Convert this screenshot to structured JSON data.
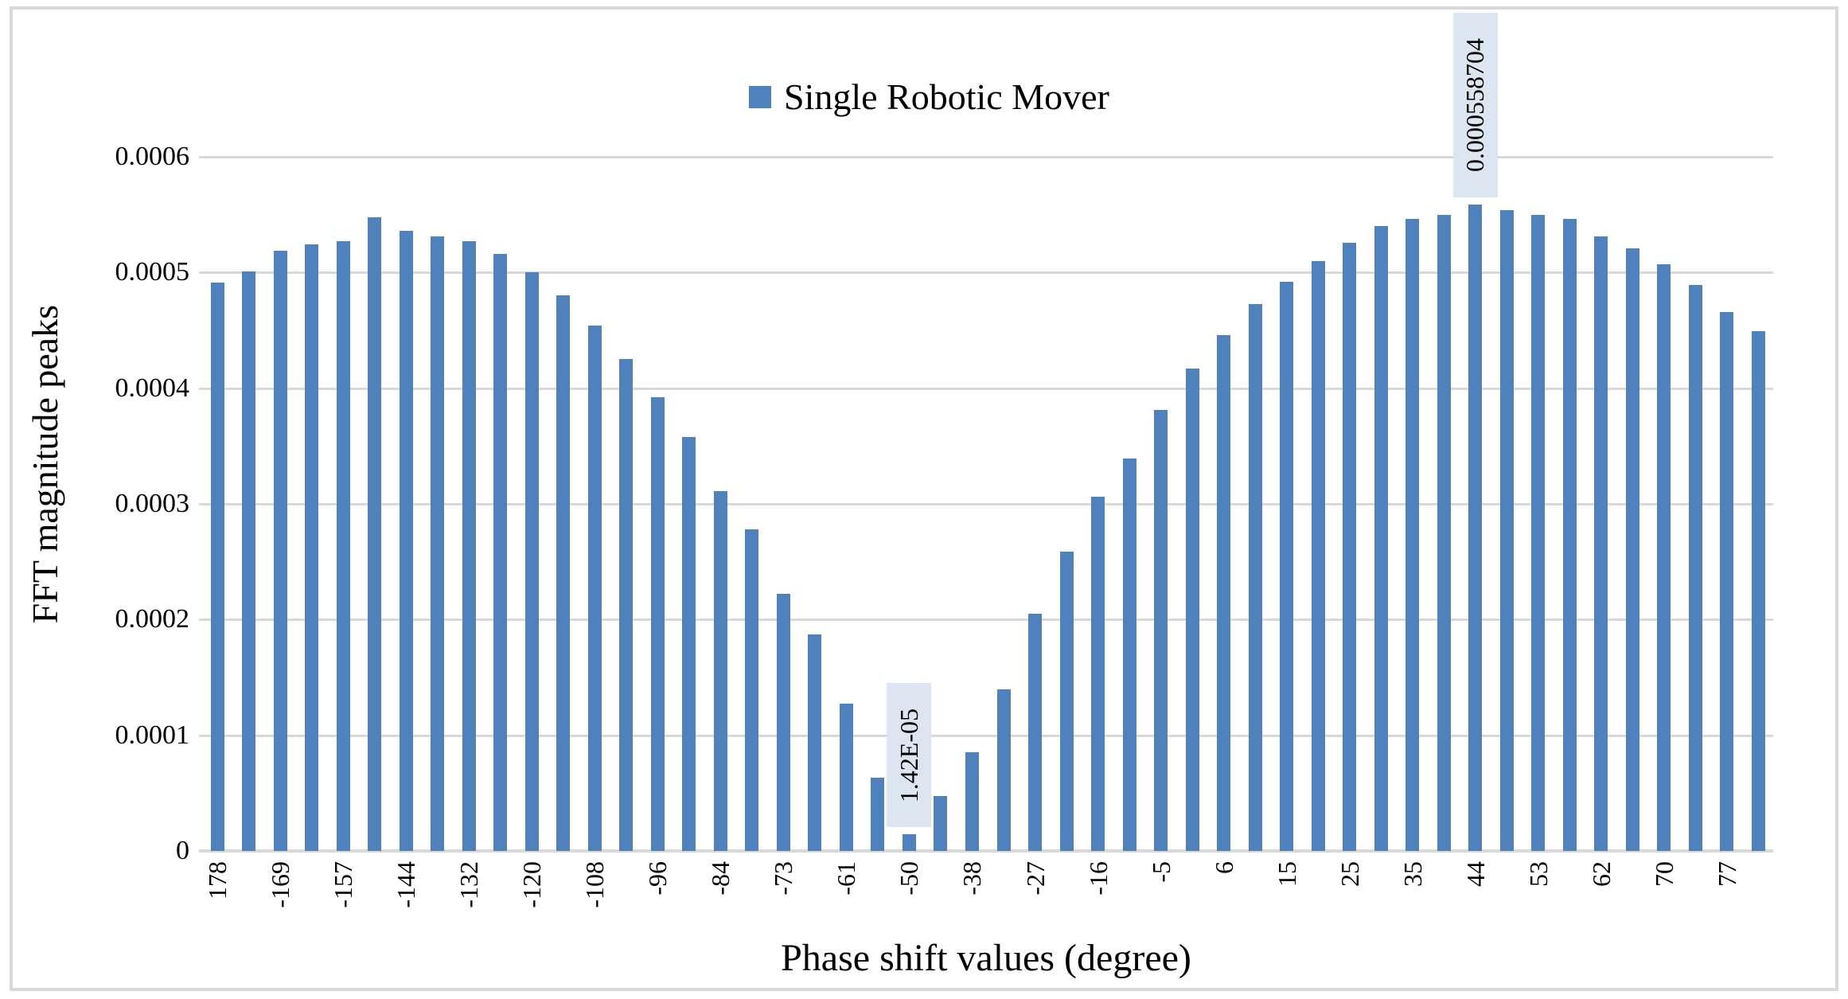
{
  "legend": {
    "series_label": "Single Robotic Mover"
  },
  "y_axis": {
    "title": "FFT magnitude peaks",
    "tick_labels": [
      "0.0006",
      "0.0005",
      "0.0004",
      "0.0003",
      "0.0002",
      "0.0001",
      "0"
    ]
  },
  "x_axis": {
    "title": "Phase shift values (degree)"
  },
  "colors": {
    "bar": "#4f81bd",
    "gridline": "#d9d9d9",
    "annotation_fill": "#dce6f1",
    "border": "#d9d9d9",
    "background": "#ffffff",
    "text": "#000000"
  },
  "chart_data": {
    "type": "bar",
    "title": "",
    "xlabel": "Phase shift values (degree)",
    "ylabel": "FFT magnitude peaks",
    "legend_position": "top-center",
    "grid": true,
    "ylim": [
      0,
      0.0006
    ],
    "y_tick_step": 0.0001,
    "categories": [
      "178",
      "",
      "-169",
      "",
      "-157",
      "",
      "-144",
      "",
      "-132",
      "",
      "-120",
      "",
      "-108",
      "",
      "-96",
      "",
      "-84",
      "",
      "-73",
      "",
      "-61",
      "",
      "-50",
      "",
      "-38",
      "",
      "-27",
      "",
      "-16",
      "",
      "-5",
      "",
      "6",
      "",
      "15",
      "",
      "25",
      "",
      "35",
      "",
      "44",
      "",
      "53",
      "",
      "62",
      "",
      "70",
      "",
      "77",
      ""
    ],
    "series": [
      {
        "name": "Single Robotic Mover",
        "values": [
          0.000491,
          0.000501,
          0.000519,
          0.000524,
          0.000527,
          0.000548,
          0.000536,
          0.000531,
          0.000527,
          0.000516,
          0.0005,
          0.00048,
          0.000454,
          0.000425,
          0.000392,
          0.000358,
          0.000311,
          0.000278,
          0.000222,
          0.000187,
          0.000127,
          6.35e-05,
          1.42e-05,
          4.78e-05,
          8.55e-05,
          0.00014,
          0.000205,
          0.000259,
          0.000306,
          0.000339,
          0.000381,
          0.000417,
          0.000446,
          0.000473,
          0.000492,
          0.00051,
          0.000526,
          0.00054,
          0.000546,
          0.00055,
          0.000558704,
          0.000554,
          0.00055,
          0.000546,
          0.000531,
          0.000521,
          0.000507,
          0.000489,
          0.000466,
          0.000449
        ]
      }
    ],
    "annotations": [
      {
        "bar_index": 22,
        "text": "1.42E-05"
      },
      {
        "bar_index": 40,
        "text": "0.000558704"
      }
    ]
  }
}
